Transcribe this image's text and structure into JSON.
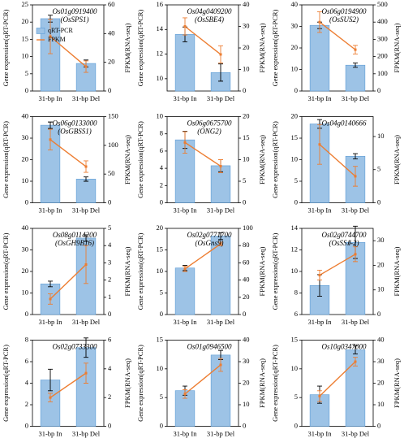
{
  "chart_data": [
    {
      "type": "bar",
      "title": "Os01g0919400",
      "subtitle": "(OsSPS1)",
      "categories": [
        "31-bp In",
        "31-bp Del"
      ],
      "ylabel": "Gene expression(qRT-PCR)",
      "y2label": "FPKM(RNA-seq)",
      "legend": "upper left",
      "series": [
        {
          "name": "qRT-PCR",
          "type": "bar",
          "color": "#9dc3e6",
          "values": [
            21,
            8
          ],
          "errors": [
            1,
            1
          ]
        },
        {
          "name": "FPKM",
          "type": "line",
          "axis": "y2",
          "color": "#ed7d31",
          "values": [
            38,
            17
          ],
          "errors": [
            12,
            4
          ]
        }
      ],
      "ylim": [
        0,
        25
      ],
      "yticks": [
        0,
        5,
        10,
        15,
        20,
        25
      ],
      "y2lim": [
        0,
        60
      ],
      "y2ticks": [
        0,
        20,
        40,
        60
      ]
    },
    {
      "type": "bar",
      "title": "Os04g0409200",
      "subtitle": "(OsSBE4)",
      "categories": [
        "31-bp In",
        "31-bp Del"
      ],
      "ylabel": "Gene expression(qRT-PCR)",
      "y2label": "FPKM(RNA-seq)",
      "series": [
        {
          "type": "bar",
          "color": "#9dc3e6",
          "values": [
            13.6,
            10.5
          ],
          "errors": [
            0.6,
            0.7
          ]
        },
        {
          "type": "line",
          "axis": "y2",
          "color": "#ed7d31",
          "values": [
            30,
            17
          ],
          "errors": [
            4,
            4
          ]
        }
      ],
      "ylim": [
        9,
        16
      ],
      "yticks": [
        10,
        12,
        14,
        16
      ],
      "y2lim": [
        0,
        40
      ],
      "y2ticks": [
        0,
        10,
        20,
        30,
        40
      ]
    },
    {
      "type": "bar",
      "title": "Os06g0194900",
      "subtitle": "(OsSUS2)",
      "categories": [
        "31-bp In",
        "31-bp Del"
      ],
      "ylabel": "Gene expression(qRT-PCR)",
      "y2label": "FPKM(RNA-seq)",
      "series": [
        {
          "type": "bar",
          "color": "#9dc3e6",
          "values": [
            30.5,
            12
          ],
          "errors": [
            1.5,
            1
          ]
        },
        {
          "type": "line",
          "axis": "y2",
          "color": "#ed7d31",
          "values": [
            400,
            240
          ],
          "errors": [
            60,
            25
          ]
        }
      ],
      "ylim": [
        0,
        40
      ],
      "yticks": [
        0,
        10,
        20,
        30,
        40
      ],
      "y2lim": [
        0,
        500
      ],
      "y2ticks": [
        0,
        100,
        200,
        300,
        400,
        500
      ]
    },
    {
      "type": "bar",
      "title": "Os06g0133000",
      "subtitle": "(OsGBSS1)",
      "categories": [
        "31-bp In",
        "31-bp Del"
      ],
      "ylabel": "Gene expression(qRT-PCR)",
      "y2label": "FPKM(RNA-seq)",
      "series": [
        {
          "type": "bar",
          "color": "#9dc3e6",
          "values": [
            36,
            11
          ],
          "errors": [
            1.5,
            1
          ]
        },
        {
          "type": "line",
          "axis": "y2",
          "color": "#ed7d31",
          "values": [
            110,
            63
          ],
          "errors": [
            18,
            10
          ]
        }
      ],
      "ylim": [
        0,
        40
      ],
      "yticks": [
        0,
        10,
        20,
        30,
        40
      ],
      "y2lim": [
        0,
        150
      ],
      "y2ticks": [
        0,
        50,
        100,
        150
      ]
    },
    {
      "type": "bar",
      "title": "Os06g0675700",
      "subtitle": "(ONG2)",
      "categories": [
        "31-bp In",
        "31-bp Del"
      ],
      "ylabel": "Gene expression(qRT-PCR)",
      "y2label": "FPKM(RNA-seq)",
      "series": [
        {
          "type": "bar",
          "color": "#9dc3e6",
          "values": [
            7.3,
            4.3
          ],
          "errors": [
            1,
            0.7
          ]
        },
        {
          "type": "line",
          "axis": "y2",
          "color": "#ed7d31",
          "values": [
            14,
            8.5
          ],
          "errors": [
            2.5,
            1.5
          ]
        }
      ],
      "ylim": [
        0,
        10
      ],
      "yticks": [
        0,
        2,
        4,
        6,
        8,
        10
      ],
      "y2lim": [
        0,
        20
      ],
      "y2ticks": [
        0,
        5,
        10,
        15,
        20
      ]
    },
    {
      "type": "bar",
      "title": "Os04g0140666",
      "categories": [
        "31-bp In",
        "31-bp Del"
      ],
      "ylabel": "Gene expression(qRT-PCR)",
      "y2label": "FPKM(RNA-seq)",
      "series": [
        {
          "type": "bar",
          "color": "#9dc3e6",
          "values": [
            18.3,
            10.8
          ],
          "errors": [
            1,
            0.6
          ]
        },
        {
          "type": "line",
          "axis": "y2",
          "color": "#ed7d31",
          "values": [
            8.8,
            4
          ],
          "errors": [
            3,
            1.5
          ]
        }
      ],
      "ylim": [
        0,
        20
      ],
      "yticks": [
        0,
        5,
        10,
        15,
        20
      ],
      "y2lim": [
        0,
        13
      ],
      "y2ticks": [
        0,
        5,
        10
      ]
    },
    {
      "type": "bar",
      "title": "Os08g0114200",
      "subtitle": "(OsGH9B16)",
      "categories": [
        "31-bp In",
        "31-bp Del"
      ],
      "ylabel": "Gene expression(qRT-PCR)",
      "y2label": "FPKM(RNA-seq)",
      "series": [
        {
          "type": "bar",
          "color": "#9dc3e6",
          "values": [
            14.2,
            35.5
          ],
          "errors": [
            1.3,
            1.5
          ]
        },
        {
          "type": "line",
          "axis": "y2",
          "color": "#ed7d31",
          "values": [
            0.9,
            2.9
          ],
          "errors": [
            0.3,
            1.1
          ]
        }
      ],
      "ylim": [
        0,
        40
      ],
      "yticks": [
        0,
        10,
        20,
        30,
        40
      ],
      "y2lim": [
        0,
        5
      ],
      "y2ticks": [
        0,
        1,
        2,
        3,
        4,
        5
      ]
    },
    {
      "type": "bar",
      "title": "Os02g0771700",
      "subtitle": "(OsGns9)",
      "categories": [
        "31-bp In",
        "31-bp Del"
      ],
      "ylabel": "Gene expression(qRT-PCR)",
      "y2label": "FPKM(RNA-seq)",
      "series": [
        {
          "type": "bar",
          "color": "#9dc3e6",
          "values": [
            10.8,
            18.2
          ],
          "errors": [
            0.6,
            0.8
          ]
        },
        {
          "type": "line",
          "axis": "y2",
          "color": "#ed7d31",
          "values": [
            53,
            82
          ],
          "errors": [
            3,
            2
          ]
        }
      ],
      "ylim": [
        0,
        20
      ],
      "yticks": [
        0,
        5,
        10,
        15,
        20
      ],
      "y2lim": [
        0,
        100
      ],
      "y2ticks": [
        0,
        20,
        40,
        60,
        80,
        100
      ]
    },
    {
      "type": "bar",
      "title": "Os02g0744700",
      "subtitle": "(OsSSⅡ-2)",
      "categories": [
        "31-bp In",
        "31-bp Del"
      ],
      "ylabel": "Gene expression(qRT-PCR)",
      "y2label": "FPKM(RNA-seq)",
      "series": [
        {
          "type": "bar",
          "color": "#9dc3e6",
          "values": [
            8.7,
            12.7
          ],
          "errors": [
            1,
            1.5
          ]
        },
        {
          "type": "line",
          "axis": "y2",
          "color": "#ed7d31",
          "values": [
            16,
            24.5
          ],
          "errors": [
            2,
            3
          ]
        }
      ],
      "ylim": [
        6,
        14
      ],
      "yticks": [
        6,
        8,
        10,
        12,
        14
      ],
      "y2lim": [
        0,
        35
      ],
      "y2ticks": [
        0,
        10,
        20,
        30
      ]
    },
    {
      "type": "bar",
      "title": "Os02g0733300",
      "categories": [
        "31-bp In",
        "31-bp Del"
      ],
      "ylabel": "Gene expression(qRT-PCR)",
      "y2label": "FPKM(RNA-seq)",
      "series": [
        {
          "type": "bar",
          "color": "#9dc3e6",
          "values": [
            4.3,
            7.3
          ],
          "errors": [
            1,
            0.9
          ]
        },
        {
          "type": "line",
          "axis": "y2",
          "color": "#ed7d31",
          "values": [
            2,
            3.7
          ],
          "errors": [
            0.3,
            0.7
          ]
        }
      ],
      "ylim": [
        0,
        8
      ],
      "yticks": [
        0,
        2,
        4,
        6,
        8
      ],
      "y2lim": [
        0,
        6
      ],
      "y2ticks": [
        0,
        2,
        4,
        6
      ]
    },
    {
      "type": "bar",
      "title": "Os01g0946500",
      "categories": [
        "31-bp In",
        "31-bp Del"
      ],
      "ylabel": "Gene expression(qRT-PCR)",
      "y2label": "FPKM(RNA-seq)",
      "series": [
        {
          "type": "bar",
          "color": "#9dc3e6",
          "values": [
            6.2,
            12.4
          ],
          "errors": [
            0.8,
            0.8
          ]
        },
        {
          "type": "line",
          "axis": "y2",
          "color": "#ed7d31",
          "values": [
            15,
            28.5
          ],
          "errors": [
            2,
            3
          ]
        }
      ],
      "ylim": [
        0,
        15
      ],
      "yticks": [
        0,
        5,
        10,
        15
      ],
      "y2lim": [
        0,
        40
      ],
      "y2ticks": [
        0,
        10,
        20,
        30,
        40
      ]
    },
    {
      "type": "bar",
      "title": "Os10g0347000",
      "categories": [
        "31-bp In",
        "31-bp Del"
      ],
      "ylabel": "Gene expression(qRT-PCR)",
      "y2label": "FPKM(RNA-seq)",
      "series": [
        {
          "type": "bar",
          "color": "#9dc3e6",
          "values": [
            5.5,
            13.3
          ],
          "errors": [
            1.5,
            0.7
          ]
        },
        {
          "type": "line",
          "axis": "y2",
          "color": "#ed7d31",
          "values": [
            14,
            30
          ],
          "errors": [
            2.5,
            2
          ]
        }
      ],
      "ylim": [
        0,
        15
      ],
      "yticks": [
        0,
        5,
        10,
        15
      ],
      "y2lim": [
        0,
        40
      ],
      "y2ticks": [
        0,
        10,
        20,
        30,
        40
      ]
    }
  ]
}
